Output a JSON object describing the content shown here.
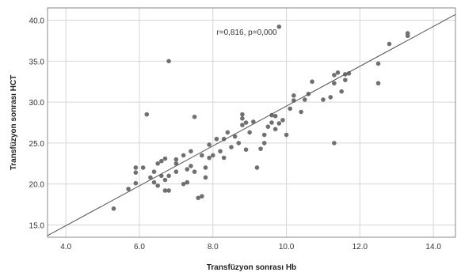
{
  "chart_data": {
    "type": "scatter",
    "title": "",
    "xlabel": "Transfüzyon sonrası Hb",
    "ylabel": "Transfüzyon sonrası HCT",
    "xlim": [
      3.5,
      14.6
    ],
    "ylim": [
      13.5,
      41.5
    ],
    "x_ticks": [
      4.0,
      6.0,
      8.0,
      10.0,
      12.0,
      14.0
    ],
    "x_tick_labels": [
      "4.0",
      "6.0",
      "8.0",
      "10.0",
      "12.0",
      "14.0"
    ],
    "y_ticks": [
      15.0,
      20.0,
      25.0,
      30.0,
      35.0,
      40.0
    ],
    "y_tick_labels": [
      "15.0",
      "20.0",
      "25.0",
      "30.0",
      "35.0",
      "40.0"
    ],
    "grid": true,
    "annotation": {
      "text": "r=0,816, p=0,000",
      "x": 8.1,
      "y": 38.2
    },
    "fit_line": {
      "x": [
        3.5,
        14.6
      ],
      "y": [
        13.7,
        40.7
      ]
    },
    "colors": {
      "points": "#707070",
      "fit_line": "#555555",
      "grid": "#d6d6d6",
      "axes": "#888888"
    },
    "points": [
      [
        5.3,
        17.0
      ],
      [
        5.7,
        19.4
      ],
      [
        5.9,
        20.1
      ],
      [
        5.9,
        21.4
      ],
      [
        5.9,
        22.0
      ],
      [
        6.1,
        22.0
      ],
      [
        6.2,
        28.5
      ],
      [
        6.3,
        20.8
      ],
      [
        6.4,
        20.2
      ],
      [
        6.4,
        21.5
      ],
      [
        6.5,
        19.8
      ],
      [
        6.5,
        22.5
      ],
      [
        6.6,
        21.0
      ],
      [
        6.6,
        22.8
      ],
      [
        6.7,
        19.2
      ],
      [
        6.7,
        20.5
      ],
      [
        6.7,
        23.1
      ],
      [
        6.8,
        35.0
      ],
      [
        6.8,
        19.2
      ],
      [
        6.8,
        21.0
      ],
      [
        7.0,
        21.5
      ],
      [
        7.0,
        22.5
      ],
      [
        7.0,
        23.0
      ],
      [
        7.2,
        20.0
      ],
      [
        7.2,
        23.5
      ],
      [
        7.3,
        20.2
      ],
      [
        7.3,
        21.8
      ],
      [
        7.4,
        22.2
      ],
      [
        7.4,
        24.0
      ],
      [
        7.5,
        21.5
      ],
      [
        7.5,
        28.2
      ],
      [
        7.6,
        18.3
      ],
      [
        7.7,
        18.5
      ],
      [
        7.7,
        23.5
      ],
      [
        7.8,
        20.8
      ],
      [
        7.8,
        22.0
      ],
      [
        7.9,
        24.8
      ],
      [
        7.9,
        23.2
      ],
      [
        8.0,
        23.5
      ],
      [
        8.1,
        25.5
      ],
      [
        8.2,
        24.0
      ],
      [
        8.3,
        25.5
      ],
      [
        8.3,
        23.2
      ],
      [
        8.4,
        26.3
      ],
      [
        8.5,
        24.5
      ],
      [
        8.6,
        25.8
      ],
      [
        8.7,
        25.0
      ],
      [
        8.8,
        27.2
      ],
      [
        8.8,
        28.5
      ],
      [
        8.8,
        28.0
      ],
      [
        8.9,
        24.2
      ],
      [
        8.9,
        27.5
      ],
      [
        9.0,
        26.3
      ],
      [
        9.1,
        27.6
      ],
      [
        9.2,
        22.0
      ],
      [
        9.3,
        24.3
      ],
      [
        9.4,
        25.0
      ],
      [
        9.4,
        26.0
      ],
      [
        9.5,
        27.0
      ],
      [
        9.6,
        27.5
      ],
      [
        9.6,
        28.4
      ],
      [
        9.7,
        26.7
      ],
      [
        9.7,
        28.3
      ],
      [
        9.8,
        39.2
      ],
      [
        9.8,
        27.4
      ],
      [
        9.9,
        27.8
      ],
      [
        10.0,
        26.0
      ],
      [
        10.1,
        29.2
      ],
      [
        10.2,
        30.8
      ],
      [
        10.2,
        30.2
      ],
      [
        10.4,
        28.8
      ],
      [
        10.5,
        30.3
      ],
      [
        10.6,
        31.0
      ],
      [
        10.7,
        32.5
      ],
      [
        11.0,
        30.3
      ],
      [
        11.2,
        30.6
      ],
      [
        11.3,
        25.0
      ],
      [
        11.3,
        32.3
      ],
      [
        11.3,
        33.3
      ],
      [
        11.4,
        33.6
      ],
      [
        11.5,
        31.3
      ],
      [
        11.6,
        32.7
      ],
      [
        11.6,
        33.4
      ],
      [
        11.7,
        33.5
      ],
      [
        12.5,
        32.3
      ],
      [
        12.5,
        34.7
      ],
      [
        12.8,
        37.1
      ],
      [
        13.3,
        38.1
      ],
      [
        13.3,
        38.4
      ]
    ]
  }
}
